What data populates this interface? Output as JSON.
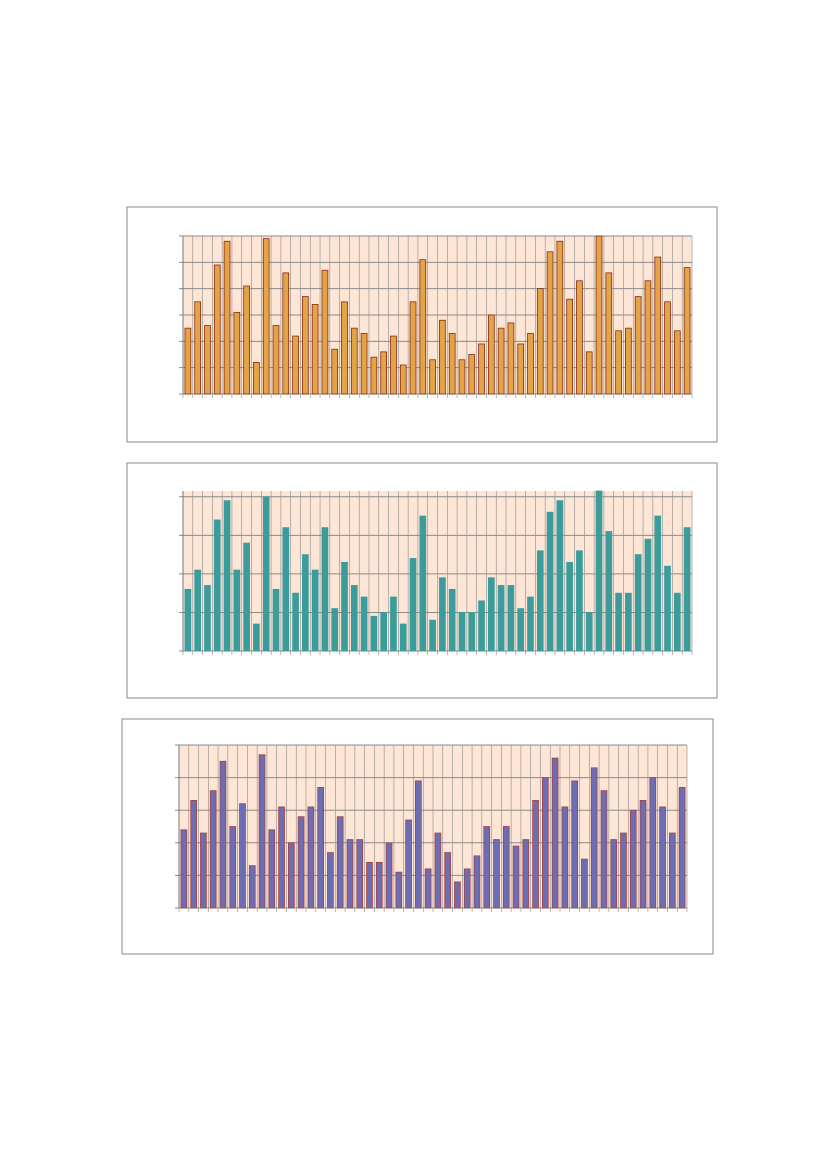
{
  "chart_data": [
    {
      "type": "bar",
      "color": "#e3a447",
      "edge": "#8b2a10",
      "ylim": [
        0,
        6
      ],
      "yticks": [
        0,
        1,
        2,
        3,
        4,
        5,
        6
      ],
      "grid": true,
      "values": [
        2.5,
        3.5,
        2.6,
        4.9,
        5.8,
        3.1,
        4.1,
        1.2,
        5.9,
        2.6,
        4.6,
        2.2,
        3.7,
        3.4,
        4.7,
        1.7,
        3.5,
        2.5,
        2.3,
        1.4,
        1.6,
        2.2,
        1.1,
        3.5,
        5.1,
        1.3,
        2.8,
        2.3,
        1.3,
        1.5,
        1.9,
        3.0,
        2.5,
        2.7,
        1.9,
        2.3,
        4.0,
        5.4,
        5.8,
        3.6,
        4.3,
        1.6,
        6.0,
        4.6,
        2.4,
        2.5,
        3.7,
        4.3,
        5.2,
        3.5,
        2.4,
        4.8
      ]
    },
    {
      "type": "bar",
      "color": "#3b9c9c",
      "edge": "#3b9c9c",
      "ylim": [
        0,
        4.15
      ],
      "yticks": [
        0,
        1,
        2,
        3,
        4
      ],
      "grid": true,
      "values": [
        1.6,
        2.1,
        1.7,
        3.4,
        3.9,
        2.1,
        2.8,
        0.7,
        4.0,
        1.6,
        3.2,
        1.5,
        2.5,
        2.1,
        3.2,
        1.1,
        2.3,
        1.7,
        1.4,
        0.9,
        1.0,
        1.4,
        0.7,
        2.4,
        3.5,
        0.8,
        1.9,
        1.6,
        1.0,
        1.0,
        1.3,
        1.9,
        1.7,
        1.7,
        1.1,
        1.4,
        2.6,
        3.6,
        3.9,
        2.3,
        2.6,
        1.0,
        4.15,
        3.1,
        1.5,
        1.5,
        2.5,
        2.9,
        3.5,
        2.2,
        1.5,
        3.2
      ]
    },
    {
      "type": "bar",
      "color": "#6b6db5",
      "edge": "#a8403c",
      "ylim": [
        0,
        5
      ],
      "yticks": [
        0,
        1,
        2,
        3,
        4,
        5
      ],
      "grid": true,
      "values": [
        2.4,
        3.3,
        2.3,
        3.6,
        4.5,
        2.5,
        3.2,
        1.3,
        4.7,
        2.4,
        3.1,
        2.0,
        2.8,
        3.1,
        3.7,
        1.7,
        2.8,
        2.1,
        2.1,
        1.4,
        1.4,
        2.0,
        1.1,
        2.7,
        3.9,
        1.2,
        2.3,
        1.7,
        0.8,
        1.2,
        1.6,
        2.5,
        2.1,
        2.5,
        1.9,
        2.1,
        3.3,
        4.0,
        4.6,
        3.1,
        3.9,
        1.5,
        4.3,
        3.6,
        2.1,
        2.3,
        3.0,
        3.3,
        4.0,
        3.1,
        2.3,
        3.7
      ]
    }
  ]
}
